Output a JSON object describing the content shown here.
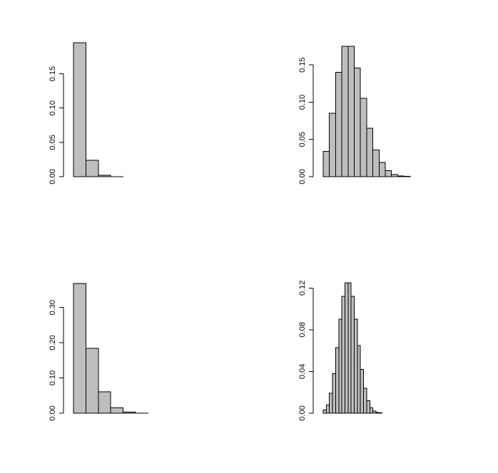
{
  "chart_data": [
    {
      "type": "bar",
      "title": "",
      "xlabel": "",
      "ylabel": "",
      "ylim": [
        0,
        0.19
      ],
      "yticks": [
        "0.00",
        "0.05",
        "0.10",
        "0.15"
      ],
      "yticks_values": [
        0,
        0.05,
        0.1,
        0.15
      ],
      "values": [
        0.195,
        0.024,
        0.002,
        0.0002,
        0,
        0,
        0,
        0,
        0,
        0
      ],
      "bar_color": "#bebebe"
    },
    {
      "type": "bar",
      "title": "",
      "xlabel": "",
      "ylabel": "",
      "ylim": [
        0,
        0.175
      ],
      "yticks": [
        "0.00",
        "0.05",
        "0.10",
        "0.15"
      ],
      "yticks_values": [
        0,
        0.05,
        0.1,
        0.15
      ],
      "values": [
        0.034,
        0.085,
        0.14,
        0.175,
        0.175,
        0.146,
        0.105,
        0.065,
        0.036,
        0.019,
        0.008,
        0.003,
        0.001,
        0.0003,
        0,
        0,
        0,
        0,
        0,
        0
      ],
      "bar_color": "#bebebe"
    },
    {
      "type": "bar",
      "title": "",
      "xlabel": "",
      "ylabel": "",
      "ylim": [
        0,
        0.37
      ],
      "yticks": [
        "0.00",
        "0.10",
        "0.20",
        "0.30"
      ],
      "yticks_values": [
        0,
        0.1,
        0.2,
        0.3
      ],
      "values": [
        0.368,
        0.184,
        0.061,
        0.015,
        0.003,
        0.0005,
        0,
        0,
        0,
        0
      ],
      "bar_color": "#bebebe"
    },
    {
      "type": "bar",
      "title": "",
      "xlabel": "",
      "ylabel": "",
      "ylim": [
        0,
        0.125
      ],
      "yticks": [
        "0.00",
        "0.04",
        "0.08",
        "0.12"
      ],
      "yticks_values": [
        0,
        0.04,
        0.08,
        0.12
      ],
      "values": [
        0.003,
        0.008,
        0.019,
        0.038,
        0.063,
        0.09,
        0.112,
        0.125,
        0.125,
        0.112,
        0.09,
        0.065,
        0.042,
        0.024,
        0.012,
        0.005,
        0.002,
        0.0007,
        0.0002,
        0,
        0,
        0,
        0,
        0,
        0,
        0,
        0,
        0,
        0,
        0,
        0,
        0,
        0,
        0,
        0,
        0,
        0,
        0,
        0,
        0
      ],
      "bar_color": "#bebebe"
    }
  ]
}
